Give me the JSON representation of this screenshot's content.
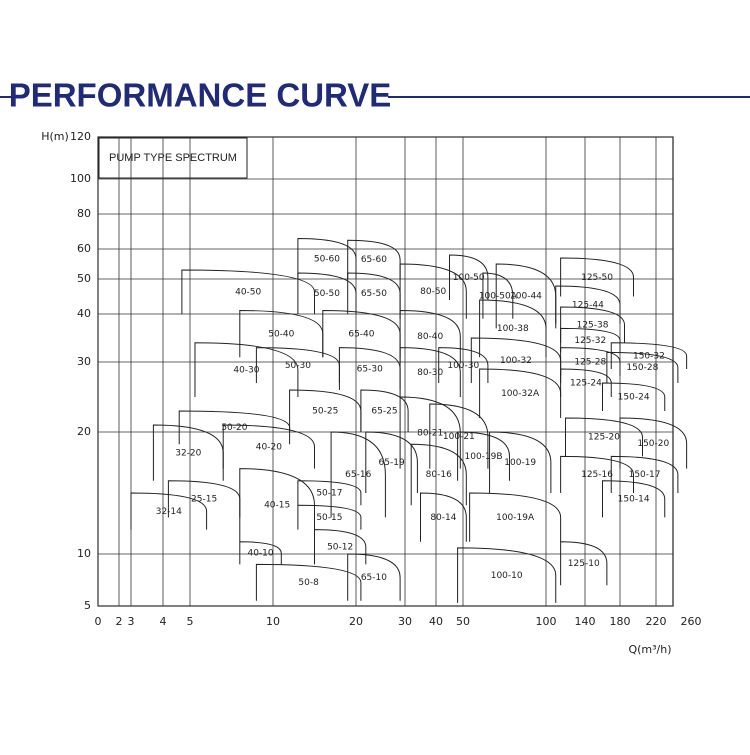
{
  "chart_data": {
    "type": "region",
    "title": "PERFORMANCE CURVE",
    "label_box": "PUMP TYPE SPECTRUM",
    "x_label": "Q(m³/h)",
    "y_label": "H(m)",
    "xlim": [
      0,
      260
    ],
    "ylim": [
      5,
      120
    ],
    "xticks": [
      0,
      2,
      3,
      4,
      5,
      10,
      20,
      30,
      40,
      50,
      100,
      140,
      180,
      220,
      260
    ],
    "yticks": [
      5,
      10,
      20,
      30,
      40,
      50,
      60,
      80,
      100,
      120
    ],
    "grid": true,
    "color": "#222222",
    "pumps": [
      {
        "name": "50-60",
        "q": [
          13,
          20
        ],
        "h": [
          50,
          66
        ]
      },
      {
        "name": "65-60",
        "q": [
          19,
          29
        ],
        "h": [
          50,
          65
        ]
      },
      {
        "name": "40-50",
        "q": [
          4.7,
          15
        ],
        "h": [
          40,
          53
        ]
      },
      {
        "name": "50-50",
        "q": [
          13,
          20
        ],
        "h": [
          40,
          52
        ]
      },
      {
        "name": "65-50",
        "q": [
          19,
          29
        ],
        "h": [
          40,
          52
        ]
      },
      {
        "name": "80-50",
        "q": [
          29,
          52
        ],
        "h": [
          39,
          55
        ]
      },
      {
        "name": "100-50",
        "q": [
          45,
          65
        ],
        "h": [
          44,
          58
        ]
      },
      {
        "name": "100-50A",
        "q": [
          62,
          80
        ],
        "h": [
          39,
          52
        ]
      },
      {
        "name": "100-44",
        "q": [
          70,
          110
        ],
        "h": [
          37,
          55
        ]
      },
      {
        "name": "100-38",
        "q": [
          60,
          100
        ],
        "h": [
          31,
          44
        ]
      },
      {
        "name": "100-32",
        "q": [
          55,
          115
        ],
        "h": [
          27,
          35
        ]
      },
      {
        "name": "100-32A",
        "q": [
          60,
          115
        ],
        "h": [
          22,
          29
        ]
      },
      {
        "name": "100-30",
        "q": [
          41,
          65
        ],
        "h": [
          27,
          33
        ]
      },
      {
        "name": "100-21",
        "q": [
          38,
          65
        ],
        "h": [
          17,
          24
        ]
      },
      {
        "name": "100-19B",
        "q": [
          48,
          78
        ],
        "h": [
          16,
          20
        ]
      },
      {
        "name": "100-19",
        "q": [
          66,
          105
        ],
        "h": [
          15,
          20
        ]
      },
      {
        "name": "100-19A",
        "q": [
          54,
          115
        ],
        "h": [
          11,
          15
        ]
      },
      {
        "name": "100-10",
        "q": [
          48,
          110
        ],
        "h": [
          5.3,
          10.5
        ]
      },
      {
        "name": "125-50",
        "q": [
          115,
          195
        ],
        "h": [
          45,
          57
        ]
      },
      {
        "name": "125-44",
        "q": [
          110,
          180
        ],
        "h": [
          38,
          48
        ]
      },
      {
        "name": "125-38",
        "q": [
          115,
          185
        ],
        "h": [
          34,
          42
        ]
      },
      {
        "name": "125-32",
        "q": [
          115,
          180
        ],
        "h": [
          32,
          37
        ]
      },
      {
        "name": "125-28",
        "q": [
          115,
          180
        ],
        "h": [
          28,
          33
        ]
      },
      {
        "name": "125-24",
        "q": [
          115,
          170
        ],
        "h": [
          25,
          29
        ]
      },
      {
        "name": "125-20",
        "q": [
          120,
          205
        ],
        "h": [
          18,
          22
        ]
      },
      {
        "name": "125-16",
        "q": [
          115,
          195
        ],
        "h": [
          15,
          18
        ]
      },
      {
        "name": "125-10",
        "q": [
          115,
          165
        ],
        "h": [
          7,
          11
        ]
      },
      {
        "name": "150-32",
        "q": [
          170,
          255
        ],
        "h": [
          29,
          34
        ]
      },
      {
        "name": "150-28",
        "q": [
          165,
          245
        ],
        "h": [
          27,
          32
        ]
      },
      {
        "name": "150-24",
        "q": [
          160,
          230
        ],
        "h": [
          23,
          27
        ]
      },
      {
        "name": "150-20",
        "q": [
          180,
          255
        ],
        "h": [
          17,
          22
        ]
      },
      {
        "name": "150-17",
        "q": [
          170,
          245
        ],
        "h": [
          15,
          18
        ]
      },
      {
        "name": "150-14",
        "q": [
          160,
          230
        ],
        "h": [
          13,
          16
        ]
      },
      {
        "name": "50-40",
        "q": [
          8,
          16
        ],
        "h": [
          31,
          41
        ]
      },
      {
        "name": "65-40",
        "q": [
          16,
          29
        ],
        "h": [
          31,
          41
        ]
      },
      {
        "name": "80-40",
        "q": [
          29,
          49
        ],
        "h": [
          30,
          41
        ]
      },
      {
        "name": "40-30",
        "q": [
          5.3,
          13
        ],
        "h": [
          25,
          34
        ]
      },
      {
        "name": "50-30",
        "q": [
          9,
          18
        ],
        "h": [
          27,
          33
        ]
      },
      {
        "name": "65-30",
        "q": [
          18,
          29
        ],
        "h": [
          26,
          33
        ]
      },
      {
        "name": "80-30",
        "q": [
          29,
          49
        ],
        "h": [
          25,
          33
        ]
      },
      {
        "name": "50-25",
        "q": [
          12,
          21
        ],
        "h": [
          20,
          26
        ]
      },
      {
        "name": "65-25",
        "q": [
          21,
          31
        ],
        "h": [
          20,
          26
        ]
      },
      {
        "name": "50-20",
        "q": [
          4.6,
          12
        ],
        "h": [
          19,
          23
        ]
      },
      {
        "name": "40-20",
        "q": [
          7,
          15
        ],
        "h": [
          17,
          21
        ]
      },
      {
        "name": "32-20",
        "q": [
          3.7,
          7
        ],
        "h": [
          16,
          21
        ]
      },
      {
        "name": "80-21",
        "q": [
          29,
          49
        ],
        "h": [
          17,
          25
        ]
      },
      {
        "name": "65-16",
        "q": [
          17,
          26
        ],
        "h": [
          13,
          20
        ]
      },
      {
        "name": "65-19",
        "q": [
          22,
          34
        ],
        "h": [
          15,
          20
        ]
      },
      {
        "name": "80-16",
        "q": [
          32,
          52
        ],
        "h": [
          14,
          19
        ]
      },
      {
        "name": "80-14",
        "q": [
          35,
          52
        ],
        "h": [
          11,
          15
        ]
      },
      {
        "name": "25-15",
        "q": [
          4.2,
          8
        ],
        "h": [
          13,
          16
        ]
      },
      {
        "name": "32-14",
        "q": [
          3,
          6
        ],
        "h": [
          12,
          15
        ]
      },
      {
        "name": "40-15",
        "q": [
          8,
          15
        ],
        "h": [
          11,
          17
        ]
      },
      {
        "name": "50-17",
        "q": [
          13,
          21
        ],
        "h": [
          14,
          16
        ]
      },
      {
        "name": "50-15",
        "q": [
          13,
          21
        ],
        "h": [
          12,
          14
        ]
      },
      {
        "name": "50-12",
        "q": [
          15,
          22
        ],
        "h": [
          9,
          12
        ]
      },
      {
        "name": "40-10",
        "q": [
          8,
          11
        ],
        "h": [
          9,
          11
        ]
      },
      {
        "name": "50-8",
        "q": [
          9,
          21
        ],
        "h": [
          5.5,
          9
        ]
      },
      {
        "name": "65-10",
        "q": [
          19,
          29
        ],
        "h": [
          5.5,
          10
        ]
      }
    ]
  }
}
